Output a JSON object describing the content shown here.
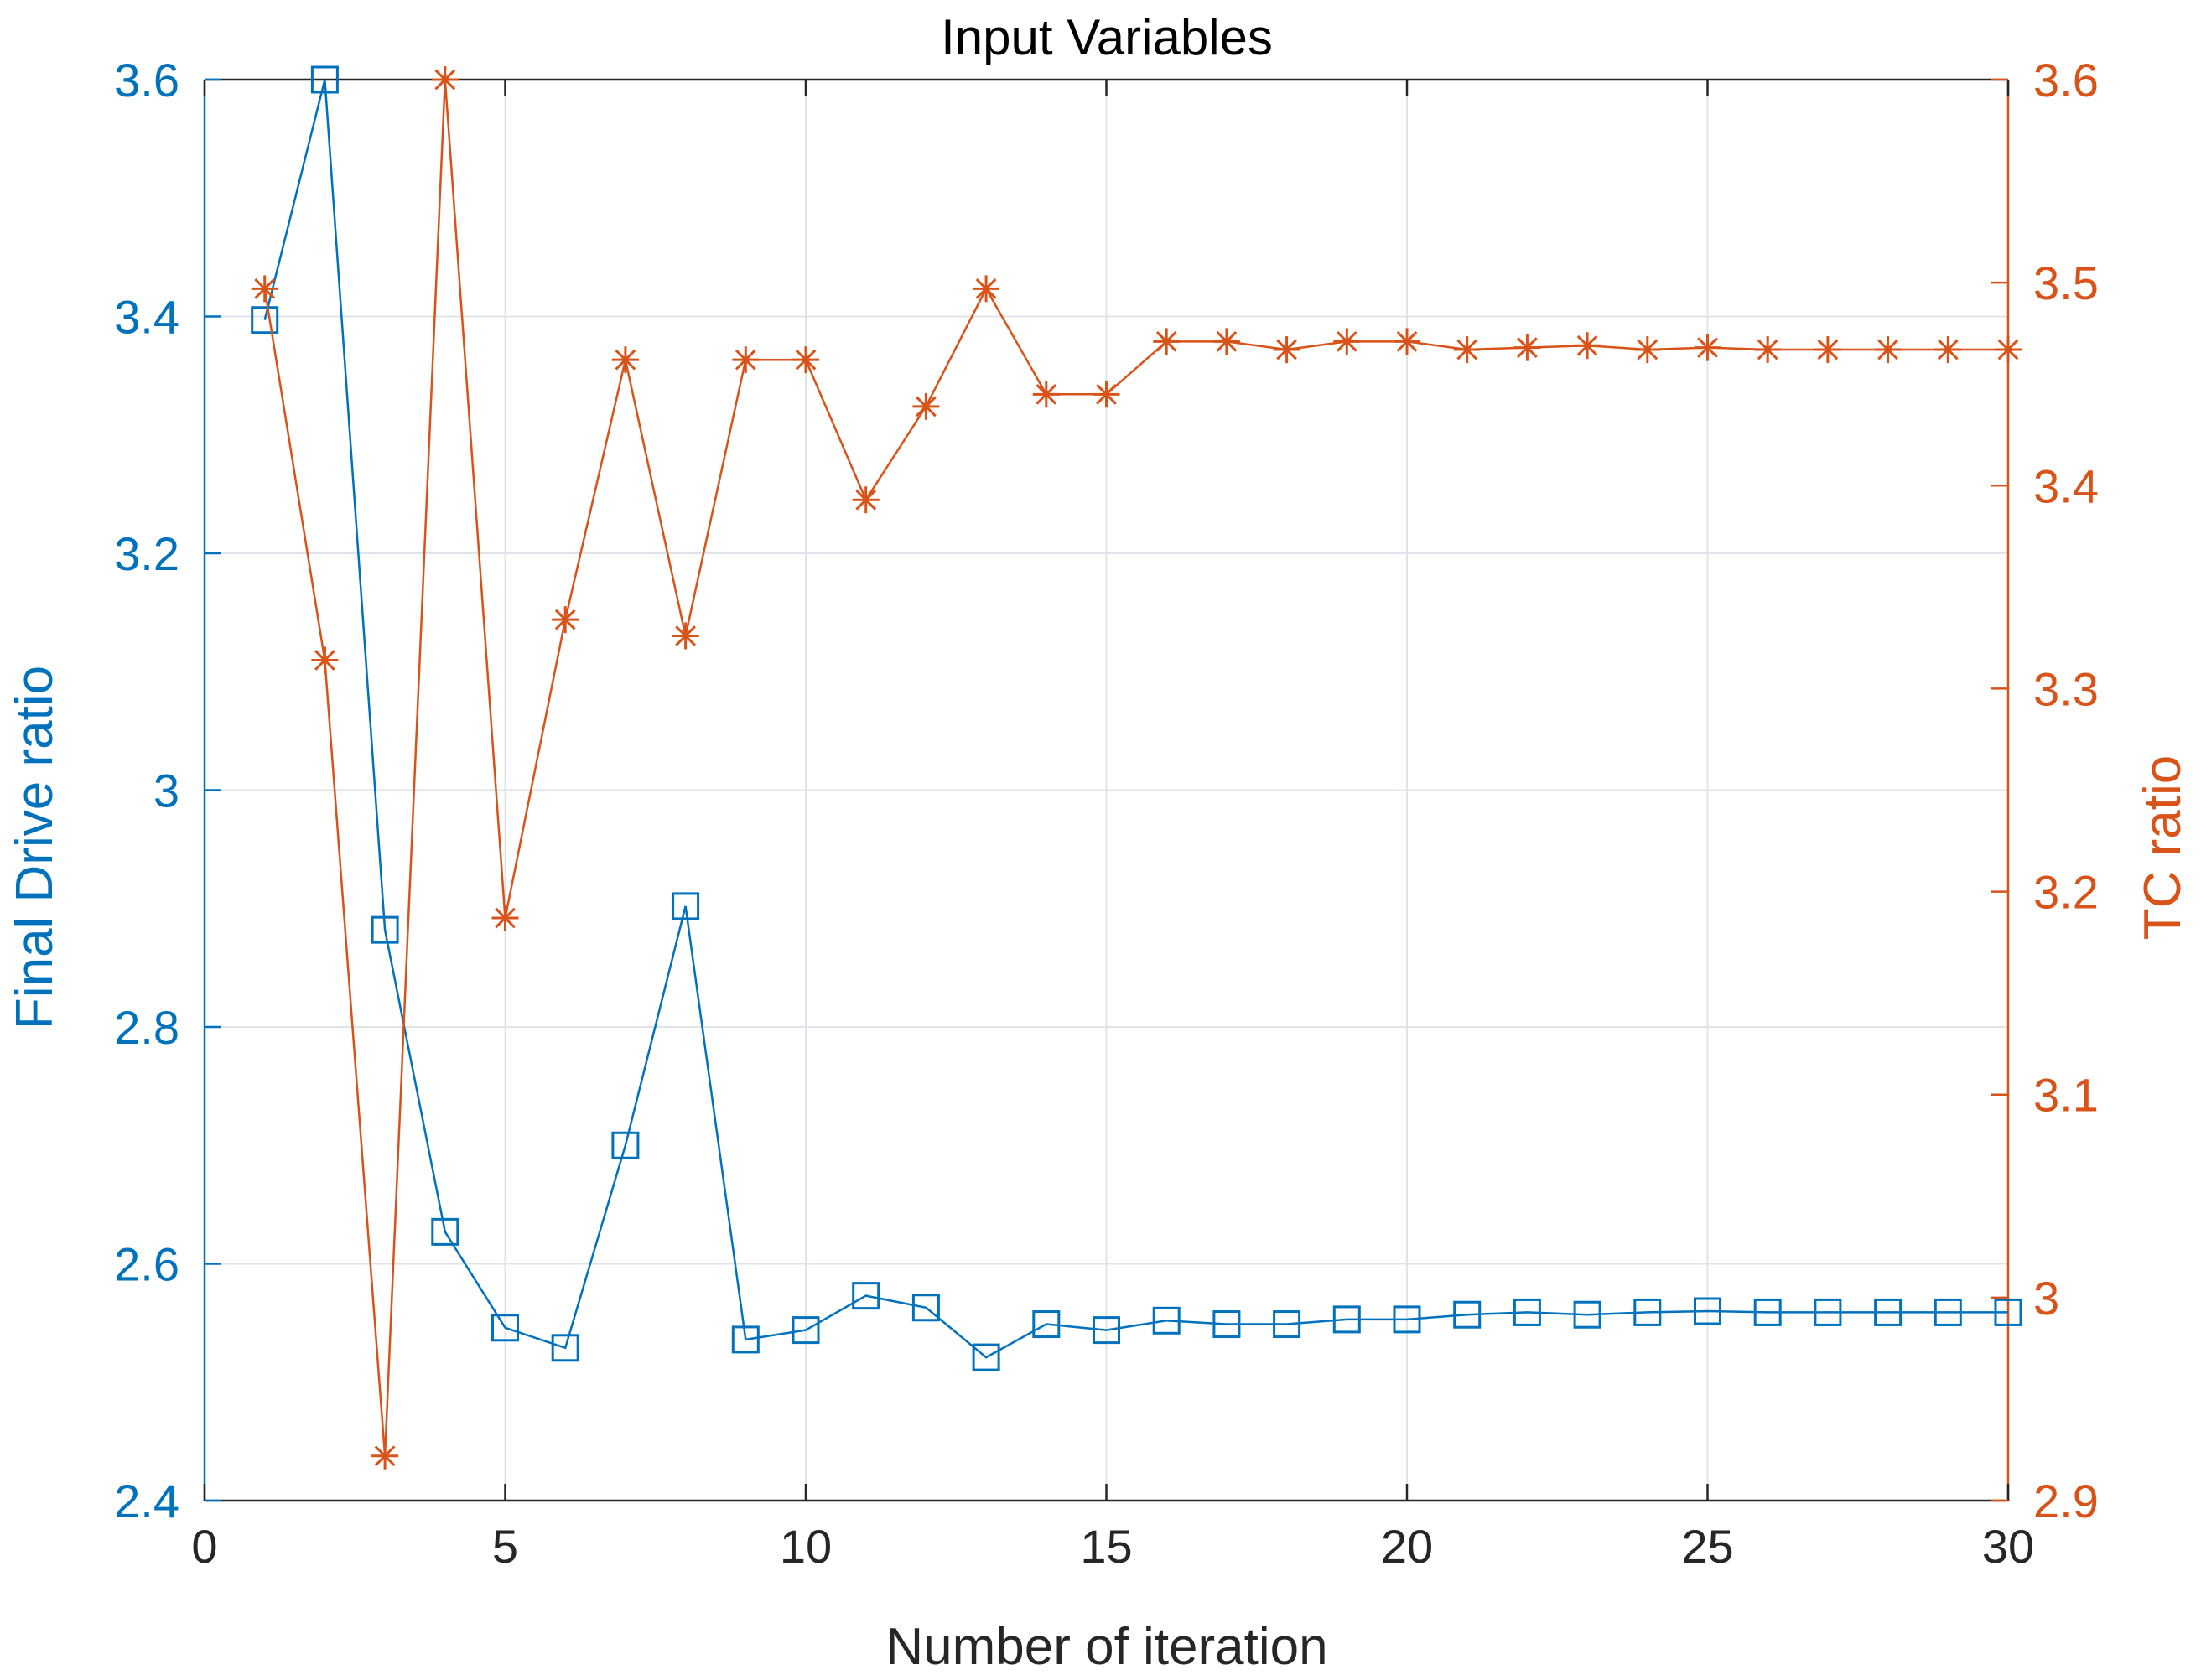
{
  "chart_data": {
    "type": "line",
    "title": "Input Variables",
    "xlabel": "Number of iteration",
    "ylabel_left": "Final Drive ratio",
    "ylabel_right": "TC ratio",
    "xlim": [
      0,
      30
    ],
    "ylim_left": [
      2.4,
      3.6
    ],
    "ylim_right": [
      2.9,
      3.6
    ],
    "x_ticks": [
      "0",
      "5",
      "10",
      "15",
      "20",
      "25",
      "30"
    ],
    "y_left_ticks": [
      "2.4",
      "2.6",
      "2.8",
      "3",
      "3.2",
      "3.4",
      "3.6"
    ],
    "y_right_ticks": [
      "2.9",
      "3",
      "3.1",
      "3.2",
      "3.3",
      "3.4",
      "3.5",
      "3.6"
    ],
    "grid": true,
    "x": [
      1,
      2,
      3,
      4,
      5,
      6,
      7,
      8,
      9,
      10,
      11,
      12,
      13,
      14,
      15,
      16,
      17,
      18,
      19,
      20,
      21,
      22,
      23,
      24,
      25,
      26,
      27,
      28,
      29,
      30
    ],
    "series": [
      {
        "name": "Final Drive ratio",
        "axis": "left",
        "marker": "square",
        "color": "#0072BD",
        "values": [
          3.397,
          3.6,
          2.882,
          2.627,
          2.546,
          2.529,
          2.7,
          2.902,
          2.536,
          2.544,
          2.573,
          2.563,
          2.521,
          2.549,
          2.544,
          2.552,
          2.549,
          2.549,
          2.553,
          2.553,
          2.557,
          2.559,
          2.557,
          2.559,
          2.56,
          2.559,
          2.559,
          2.559,
          2.559,
          2.559
        ]
      },
      {
        "name": "TC ratio",
        "axis": "right",
        "marker": "asterisk",
        "color": "#D95319",
        "values": [
          3.497,
          3.314,
          2.922,
          3.6,
          3.187,
          3.334,
          3.462,
          3.326,
          3.462,
          3.462,
          3.393,
          3.439,
          3.497,
          3.445,
          3.445,
          3.471,
          3.471,
          3.467,
          3.471,
          3.471,
          3.467,
          3.468,
          3.469,
          3.467,
          3.468,
          3.467,
          3.467,
          3.467,
          3.467,
          3.467
        ]
      }
    ]
  },
  "colors": {
    "left_axis": "#0072BD",
    "right_axis": "#D95319",
    "grid": "#E0E4EA",
    "text": "#262626"
  }
}
